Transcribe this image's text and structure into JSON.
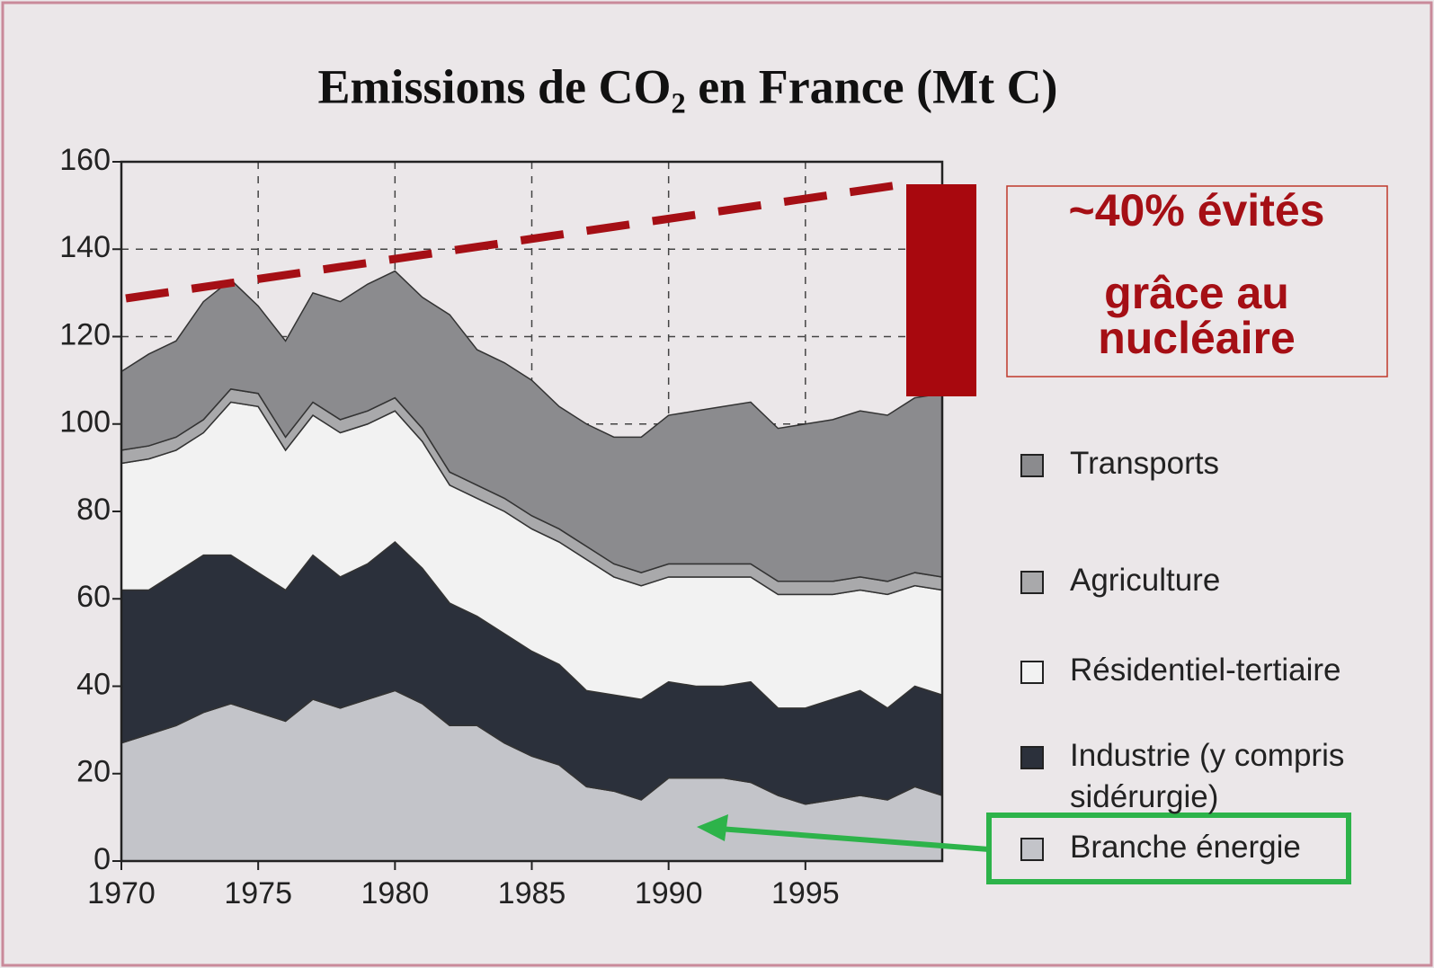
{
  "chart_data": {
    "type": "stacked_area",
    "title": "Emissions de CO₂ en France (Mt C)",
    "x": [
      1970,
      1971,
      1972,
      1973,
      1974,
      1975,
      1976,
      1977,
      1978,
      1979,
      1980,
      1981,
      1982,
      1983,
      1984,
      1985,
      1986,
      1987,
      1988,
      1989,
      1990,
      1991,
      1992,
      1993,
      1994,
      1995,
      1996,
      1997,
      1998,
      1999,
      2000
    ],
    "series": [
      {
        "name": "Branche énergie",
        "color": "#c3c4c9",
        "values": [
          27,
          29,
          31,
          34,
          36,
          34,
          32,
          37,
          35,
          37,
          39,
          36,
          31,
          31,
          27,
          24,
          22,
          17,
          16,
          14,
          19,
          19,
          19,
          18,
          15,
          13,
          14,
          15,
          14,
          17,
          15
        ]
      },
      {
        "name": "Industrie (y compris sidérurgie)",
        "color": "#2b303b",
        "values": [
          35,
          33,
          35,
          36,
          34,
          32,
          30,
          33,
          30,
          31,
          34,
          31,
          28,
          25,
          25,
          24,
          23,
          22,
          22,
          23,
          22,
          21,
          21,
          23,
          20,
          22,
          23,
          24,
          21,
          23,
          23
        ]
      },
      {
        "name": "Résidentiel-tertiaire",
        "color": "#f2f2f2",
        "values": [
          29,
          30,
          28,
          28,
          35,
          38,
          32,
          32,
          33,
          32,
          30,
          29,
          27,
          27,
          28,
          28,
          28,
          30,
          27,
          26,
          24,
          25,
          25,
          24,
          26,
          26,
          24,
          23,
          26,
          23,
          24
        ]
      },
      {
        "name": "Agriculture",
        "color": "#a9a9ab",
        "values": [
          3,
          3,
          3,
          3,
          3,
          3,
          3,
          3,
          3,
          3,
          3,
          3,
          3,
          3,
          3,
          3,
          3,
          3,
          3,
          3,
          3,
          3,
          3,
          3,
          3,
          3,
          3,
          3,
          3,
          3,
          3
        ]
      },
      {
        "name": "Transports",
        "color": "#8b8b8e",
        "values": [
          18,
          21,
          22,
          27,
          25,
          20,
          22,
          25,
          27,
          29,
          29,
          30,
          36,
          31,
          31,
          31,
          28,
          28,
          29,
          31,
          34,
          35,
          36,
          37,
          35,
          36,
          37,
          38,
          38,
          40,
          42
        ]
      }
    ],
    "xlim": [
      1970,
      2000
    ],
    "xticks": [
      1970,
      1975,
      1980,
      1985,
      1990,
      1995
    ],
    "ylim": [
      0,
      160
    ],
    "yticks": [
      0,
      20,
      40,
      60,
      80,
      100,
      120,
      140,
      160
    ],
    "grid": true,
    "annotations": [
      "~40% évités",
      "grâce au",
      "nucléaire"
    ]
  }
}
